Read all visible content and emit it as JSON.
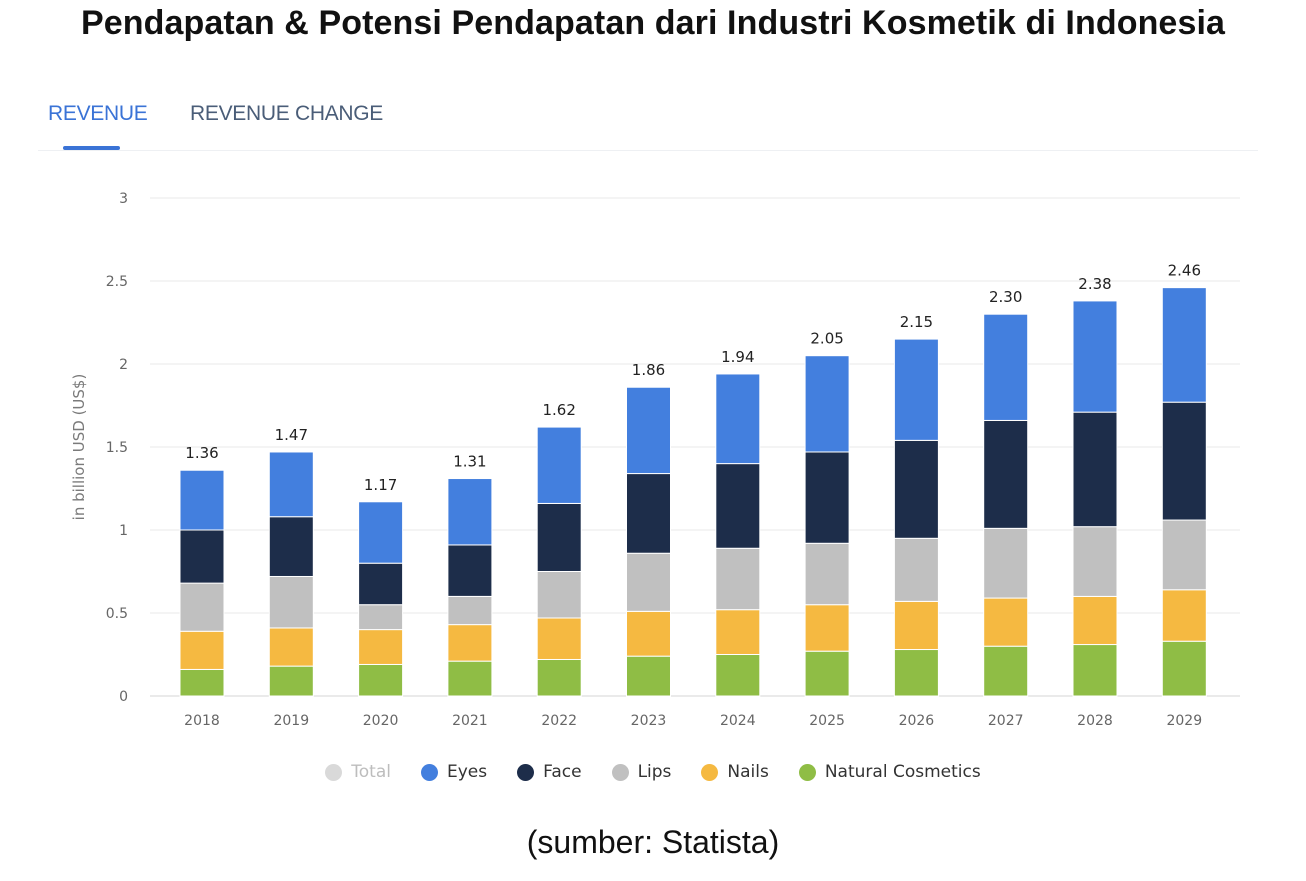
{
  "page_title": "Pendapatan & Potensi Pendapatan dari Industri Kosmetik di Indonesia",
  "tabs": [
    {
      "label": "REVENUE",
      "active": true
    },
    {
      "label": "REVENUE CHANGE",
      "active": false
    }
  ],
  "chart_data": {
    "type": "bar",
    "stacked": true,
    "title": "",
    "xlabel": "",
    "ylabel": "in billion USD (US$)",
    "ylim": [
      0,
      3
    ],
    "yticks": [
      "0",
      "0.5",
      "1",
      "1.5",
      "2",
      "2.5",
      "3"
    ],
    "grid": true,
    "categories": [
      "2018",
      "2019",
      "2020",
      "2021",
      "2022",
      "2023",
      "2024",
      "2025",
      "2026",
      "2027",
      "2028",
      "2029"
    ],
    "totals": [
      "1.36",
      "1.47",
      "1.17",
      "1.31",
      "1.62",
      "1.86",
      "1.94",
      "2.05",
      "2.15",
      "2.30",
      "2.38",
      "2.46"
    ],
    "series": [
      {
        "name": "Natural Cosmetics",
        "color": "#8fbd45",
        "values": [
          0.16,
          0.18,
          0.19,
          0.21,
          0.22,
          0.24,
          0.25,
          0.27,
          0.28,
          0.3,
          0.31,
          0.33
        ]
      },
      {
        "name": "Nails",
        "color": "#f5b941",
        "values": [
          0.23,
          0.23,
          0.21,
          0.22,
          0.25,
          0.27,
          0.27,
          0.28,
          0.29,
          0.29,
          0.29,
          0.31
        ]
      },
      {
        "name": "Lips",
        "color": "#c0c0c0",
        "values": [
          0.29,
          0.31,
          0.15,
          0.17,
          0.28,
          0.35,
          0.37,
          0.37,
          0.38,
          0.42,
          0.42,
          0.42
        ]
      },
      {
        "name": "Face",
        "color": "#1d2d4a",
        "values": [
          0.32,
          0.36,
          0.25,
          0.31,
          0.41,
          0.48,
          0.51,
          0.55,
          0.59,
          0.65,
          0.69,
          0.71
        ]
      },
      {
        "name": "Eyes",
        "color": "#437fde",
        "values": [
          0.36,
          0.39,
          0.37,
          0.4,
          0.46,
          0.52,
          0.54,
          0.58,
          0.61,
          0.64,
          0.67,
          0.69
        ]
      }
    ],
    "legend": [
      {
        "name": "Total",
        "color": "#d9d9d9",
        "active": false
      },
      {
        "name": "Eyes",
        "color": "#437fde",
        "active": true
      },
      {
        "name": "Face",
        "color": "#1d2d4a",
        "active": true
      },
      {
        "name": "Lips",
        "color": "#c0c0c0",
        "active": true
      },
      {
        "name": "Nails",
        "color": "#f5b941",
        "active": true
      },
      {
        "name": "Natural Cosmetics",
        "color": "#8fbd45",
        "active": true
      }
    ]
  },
  "source_text": "(sumber: Statista)"
}
